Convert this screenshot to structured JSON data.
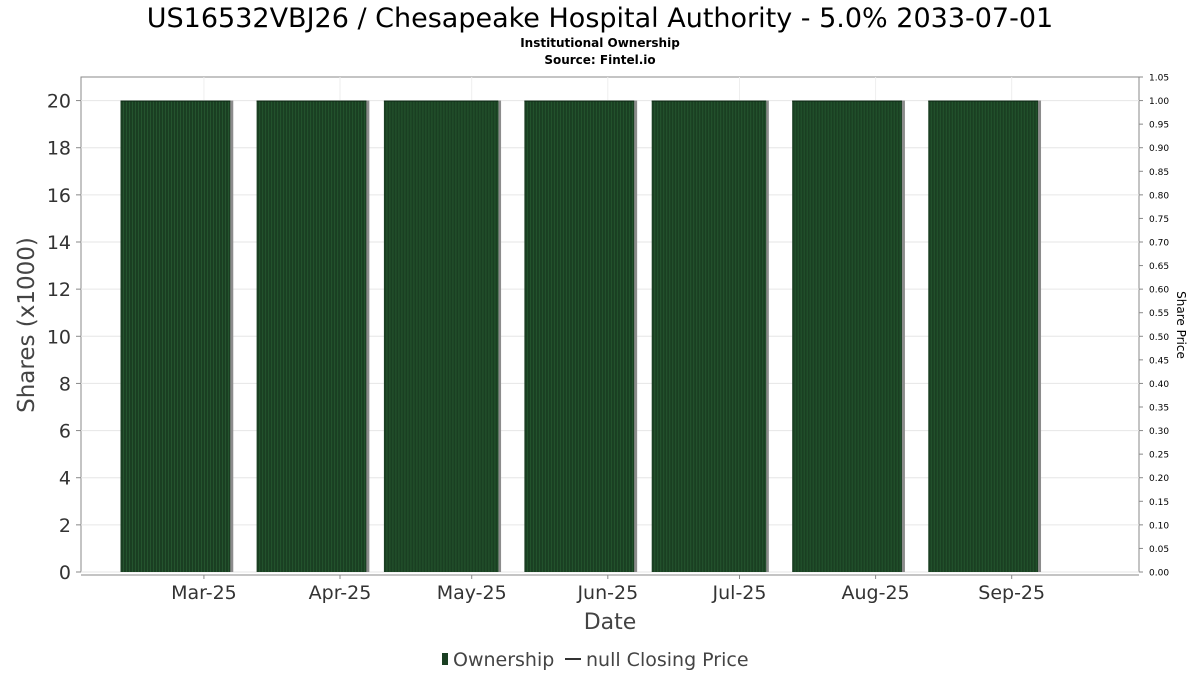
{
  "chart_data": {
    "type": "bar",
    "title": "US16532VBJ26 / Chesapeake Hospital Authority - 5.0% 2033-07-01",
    "subtitle": "Institutional Ownership",
    "source": "Source: Fintel.io",
    "xlabel": "Date",
    "ylabel": "Shares (x1000)",
    "y2label": "Share Price",
    "ylim": [
      0,
      21
    ],
    "y_ticks": [
      "0",
      "2",
      "4",
      "6",
      "8",
      "10",
      "12",
      "14",
      "16",
      "18",
      "20"
    ],
    "y2lim": [
      0,
      1.05
    ],
    "y2_ticks": [
      "0.00",
      "0.05",
      "0.10",
      "0.15",
      "0.20",
      "0.25",
      "0.30",
      "0.35",
      "0.40",
      "0.45",
      "0.50",
      "0.55",
      "0.60",
      "0.65",
      "0.70",
      "0.75",
      "0.80",
      "0.85",
      "0.90",
      "0.95",
      "1.00",
      "1.05"
    ],
    "x_range": [
      "2025-02-01",
      "2025-09-30"
    ],
    "x_ticks": [
      {
        "label": "Mar-25",
        "date": "2025-03-01"
      },
      {
        "label": "Apr-25",
        "date": "2025-04-01"
      },
      {
        "label": "May-25",
        "date": "2025-05-01"
      },
      {
        "label": "Jun-25",
        "date": "2025-06-01"
      },
      {
        "label": "Jul-25",
        "date": "2025-07-01"
      },
      {
        "label": "Aug-25",
        "date": "2025-08-01"
      },
      {
        "label": "Sep-25",
        "date": "2025-09-01"
      }
    ],
    "series": [
      {
        "name": "Ownership",
        "color": "#1a3f22",
        "bars": [
          {
            "start": "2025-02-10",
            "end": "2025-03-07",
            "value": 20
          },
          {
            "start": "2025-03-13",
            "end": "2025-04-07",
            "value": 20
          },
          {
            "start": "2025-04-11",
            "end": "2025-05-07",
            "value": 20
          },
          {
            "start": "2025-05-13",
            "end": "2025-06-07",
            "value": 20
          },
          {
            "start": "2025-06-11",
            "end": "2025-07-07",
            "value": 20
          },
          {
            "start": "2025-07-13",
            "end": "2025-08-07",
            "value": 20
          },
          {
            "start": "2025-08-13",
            "end": "2025-09-07",
            "value": 20
          }
        ]
      },
      {
        "name": "null Closing Price",
        "color": "#333333",
        "values": []
      }
    ],
    "grid": true,
    "legend_position": "bottom-center"
  }
}
